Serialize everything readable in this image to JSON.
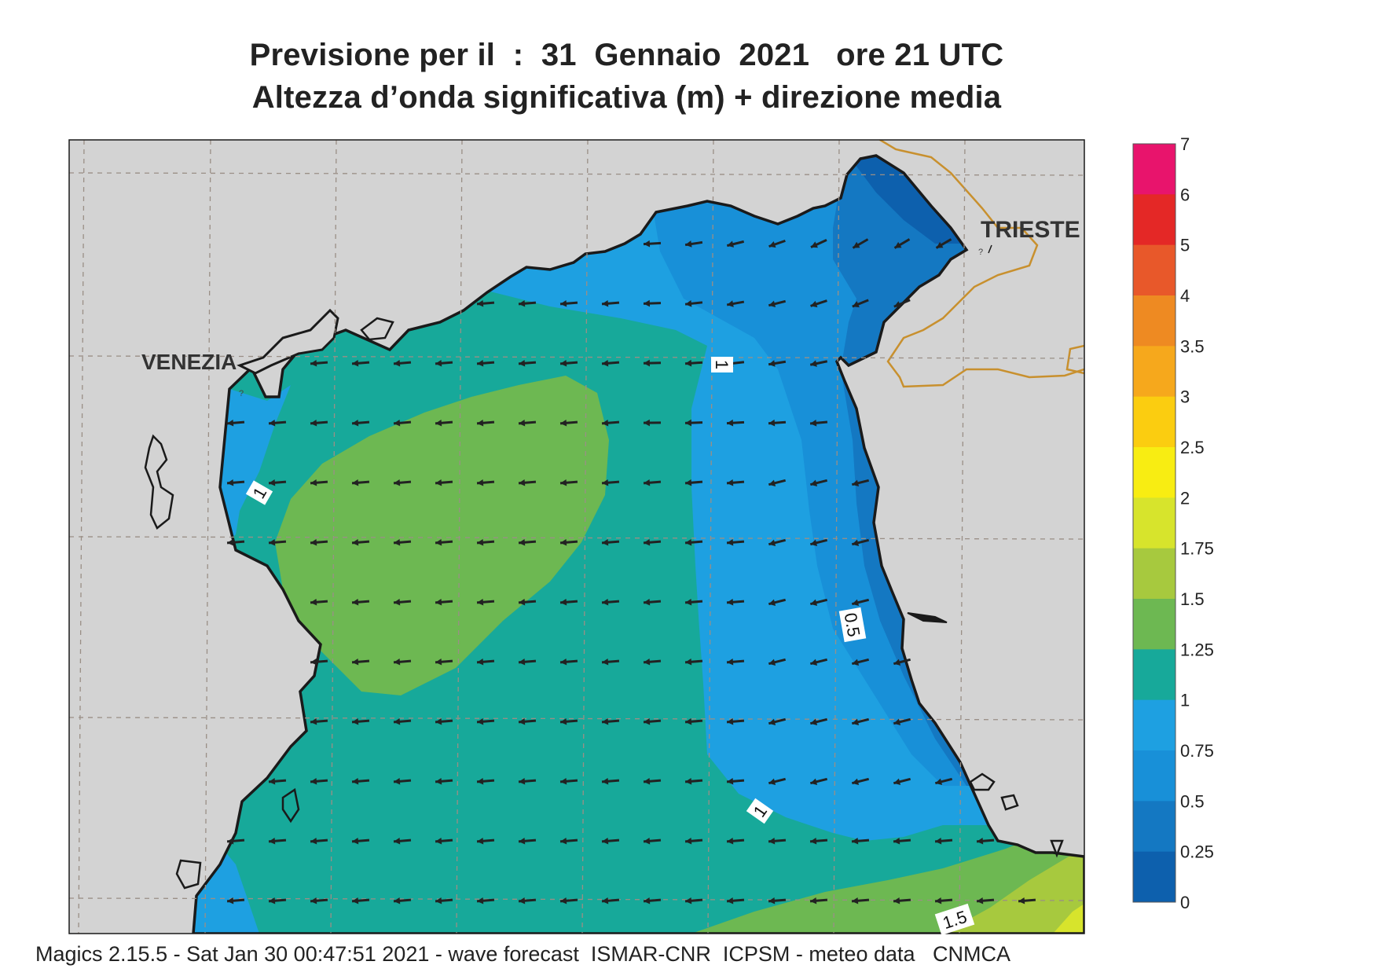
{
  "title_line1": "Previsione per il  :  31  Gennaio  2021   ore 21 UTC",
  "title_line2": "Altezza d’onda significativa (m) + direzione media",
  "place_labels": {
    "venezia": "VENEZIA",
    "trieste": "TRIESTE"
  },
  "contour_labels": [
    "1",
    "1",
    "1",
    "0.5",
    "1.5"
  ],
  "colorbar": {
    "levels": [
      "7",
      "6",
      "5",
      "4",
      "3.5",
      "3",
      "2.5",
      "2",
      "1.75",
      "1.5",
      "1.25",
      "1",
      "0.75",
      "0.5",
      "0.25",
      "0"
    ],
    "colors": [
      "#e8146c",
      "#e42826",
      "#e8582a",
      "#ee8a22",
      "#f6a81c",
      "#fbcd10",
      "#f8ed12",
      "#d7e42c",
      "#a7c93e",
      "#6db852",
      "#17a99a",
      "#1ea0e1",
      "#1890d8",
      "#1478c2",
      "#0d60ad"
    ]
  },
  "colors": {
    "land": "#d3d3d3",
    "coast": "#1a1a1a",
    "border": "#c8902e",
    "grid": "#9a8f86",
    "arrow": "#222222",
    "wave_0_0_25": "#0d60ad",
    "wave_0_25_0_5": "#1478c2",
    "wave_0_5_0_75": "#1890d8",
    "wave_0_75_1": "#1ea0e1",
    "wave_1_1_25": "#17a99a",
    "wave_1_25_1_5": "#6db852",
    "wave_1_5_1_75": "#a7c93e",
    "wave_1_75_2": "#d7e42c"
  },
  "mean_direction": "westward, slight south-west tilt in north-east basin",
  "footer": "Magics 2.15.5 - Sat Jan 30 00:47:51 2021 - wave forecast  ISMAR-CNR  ICPSM - meteo data   CNMCA"
}
